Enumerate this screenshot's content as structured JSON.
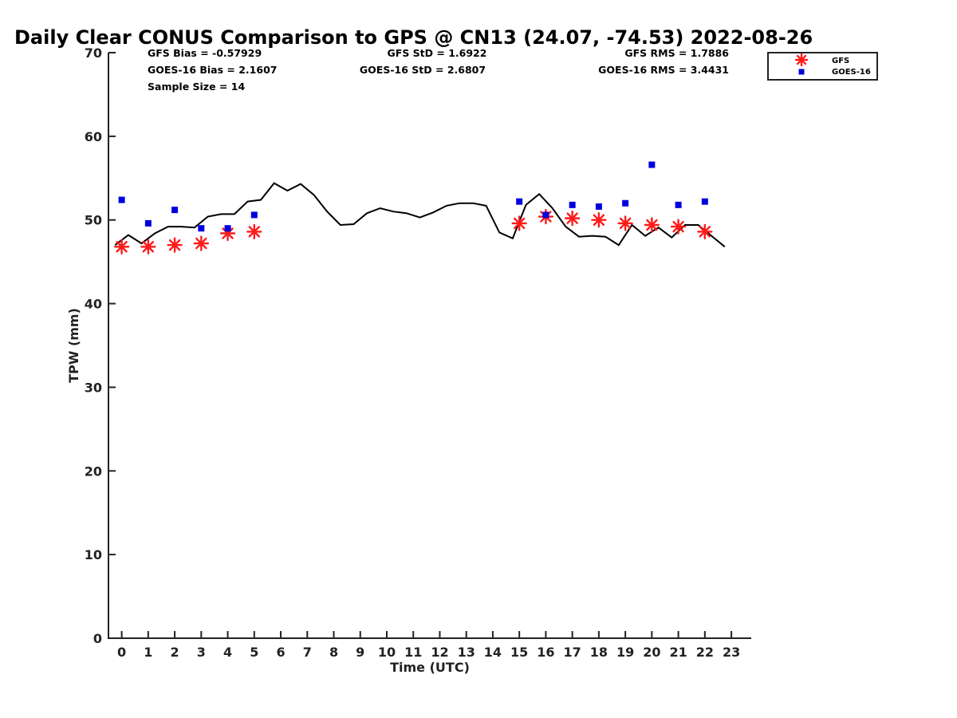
{
  "chart_data": {
    "type": "scatter",
    "title": "Daily Clear CONUS Comparison to GPS @ CN13 (24.07, -74.53) 2022-08-26",
    "xlabel": "Time (UTC)",
    "ylabel": "TPW (mm)",
    "xlim": [
      -0.5,
      23.75
    ],
    "ylim": [
      0,
      70
    ],
    "xticks": [
      "0",
      "1",
      "2",
      "3",
      "4",
      "5",
      "6",
      "7",
      "8",
      "9",
      "10",
      "11",
      "12",
      "13",
      "14",
      "15",
      "16",
      "17",
      "18",
      "19",
      "20",
      "21",
      "22",
      "23"
    ],
    "yticks": [
      "0",
      "10",
      "20",
      "30",
      "40",
      "50",
      "60",
      "70"
    ],
    "grid": false,
    "legend_position": "top-right",
    "stats": {
      "gfs_bias": "GFS Bias = -0.57929",
      "goes_bias": "GOES-16 Bias = 2.1607",
      "sample_size": "Sample Size = 14",
      "gfs_std": "GFS StD = 1.6922",
      "goes_std": "GOES-16 StD = 2.6807",
      "gfs_rms": "GFS RMS = 1.7886",
      "goes_rms": "GOES-16 RMS = 3.4431"
    },
    "gps_line": {
      "color": "#000000",
      "x": [
        -0.25,
        0.25,
        0.75,
        1.25,
        1.75,
        2.25,
        2.75,
        3.25,
        3.75,
        4.25,
        4.75,
        5.25,
        5.75,
        6.25,
        6.75,
        7.25,
        7.75,
        8.25,
        8.75,
        9.25,
        9.75,
        10.25,
        10.75,
        11.25,
        11.75,
        12.25,
        12.75,
        13.25,
        13.75,
        14.25,
        14.75,
        15.25,
        15.75,
        16.25,
        16.75,
        17.25,
        17.75,
        18.25,
        18.75,
        19.25,
        19.75,
        20.25,
        20.75,
        21.25,
        21.75,
        22.25,
        22.75
      ],
      "y": [
        47.0,
        48.2,
        47.2,
        48.4,
        49.2,
        49.2,
        49.1,
        50.4,
        50.7,
        50.7,
        52.2,
        52.4,
        54.4,
        53.5,
        54.3,
        53.0,
        51.0,
        49.4,
        49.5,
        50.8,
        51.4,
        51.0,
        50.8,
        50.3,
        50.9,
        51.7,
        52.0,
        52.0,
        51.7,
        48.5,
        47.8,
        51.8,
        53.1,
        51.4,
        49.2,
        48.0,
        48.1,
        48.0,
        47.0,
        49.4,
        48.1,
        49.1,
        47.9,
        49.4,
        49.4,
        48.1,
        46.8
      ]
    },
    "series": [
      {
        "name": "GFS",
        "marker": "asterisk",
        "color": "#ff1a1a",
        "x": [
          0,
          1,
          2,
          3,
          4,
          5,
          15,
          16,
          17,
          18,
          19,
          20,
          21,
          22
        ],
        "y": [
          46.8,
          46.8,
          47.0,
          47.2,
          48.4,
          48.6,
          49.6,
          50.4,
          50.2,
          50.0,
          49.6,
          49.4,
          49.2,
          48.6
        ]
      },
      {
        "name": "GOES-16",
        "marker": "square",
        "color": "#0000dd",
        "x": [
          0,
          1,
          2,
          3,
          4,
          5,
          15,
          16,
          17,
          18,
          19,
          20,
          21,
          22
        ],
        "y": [
          52.4,
          49.6,
          51.2,
          49.0,
          49.0,
          50.6,
          52.2,
          50.6,
          51.8,
          51.6,
          52.0,
          56.6,
          51.8,
          52.2
        ]
      }
    ]
  }
}
